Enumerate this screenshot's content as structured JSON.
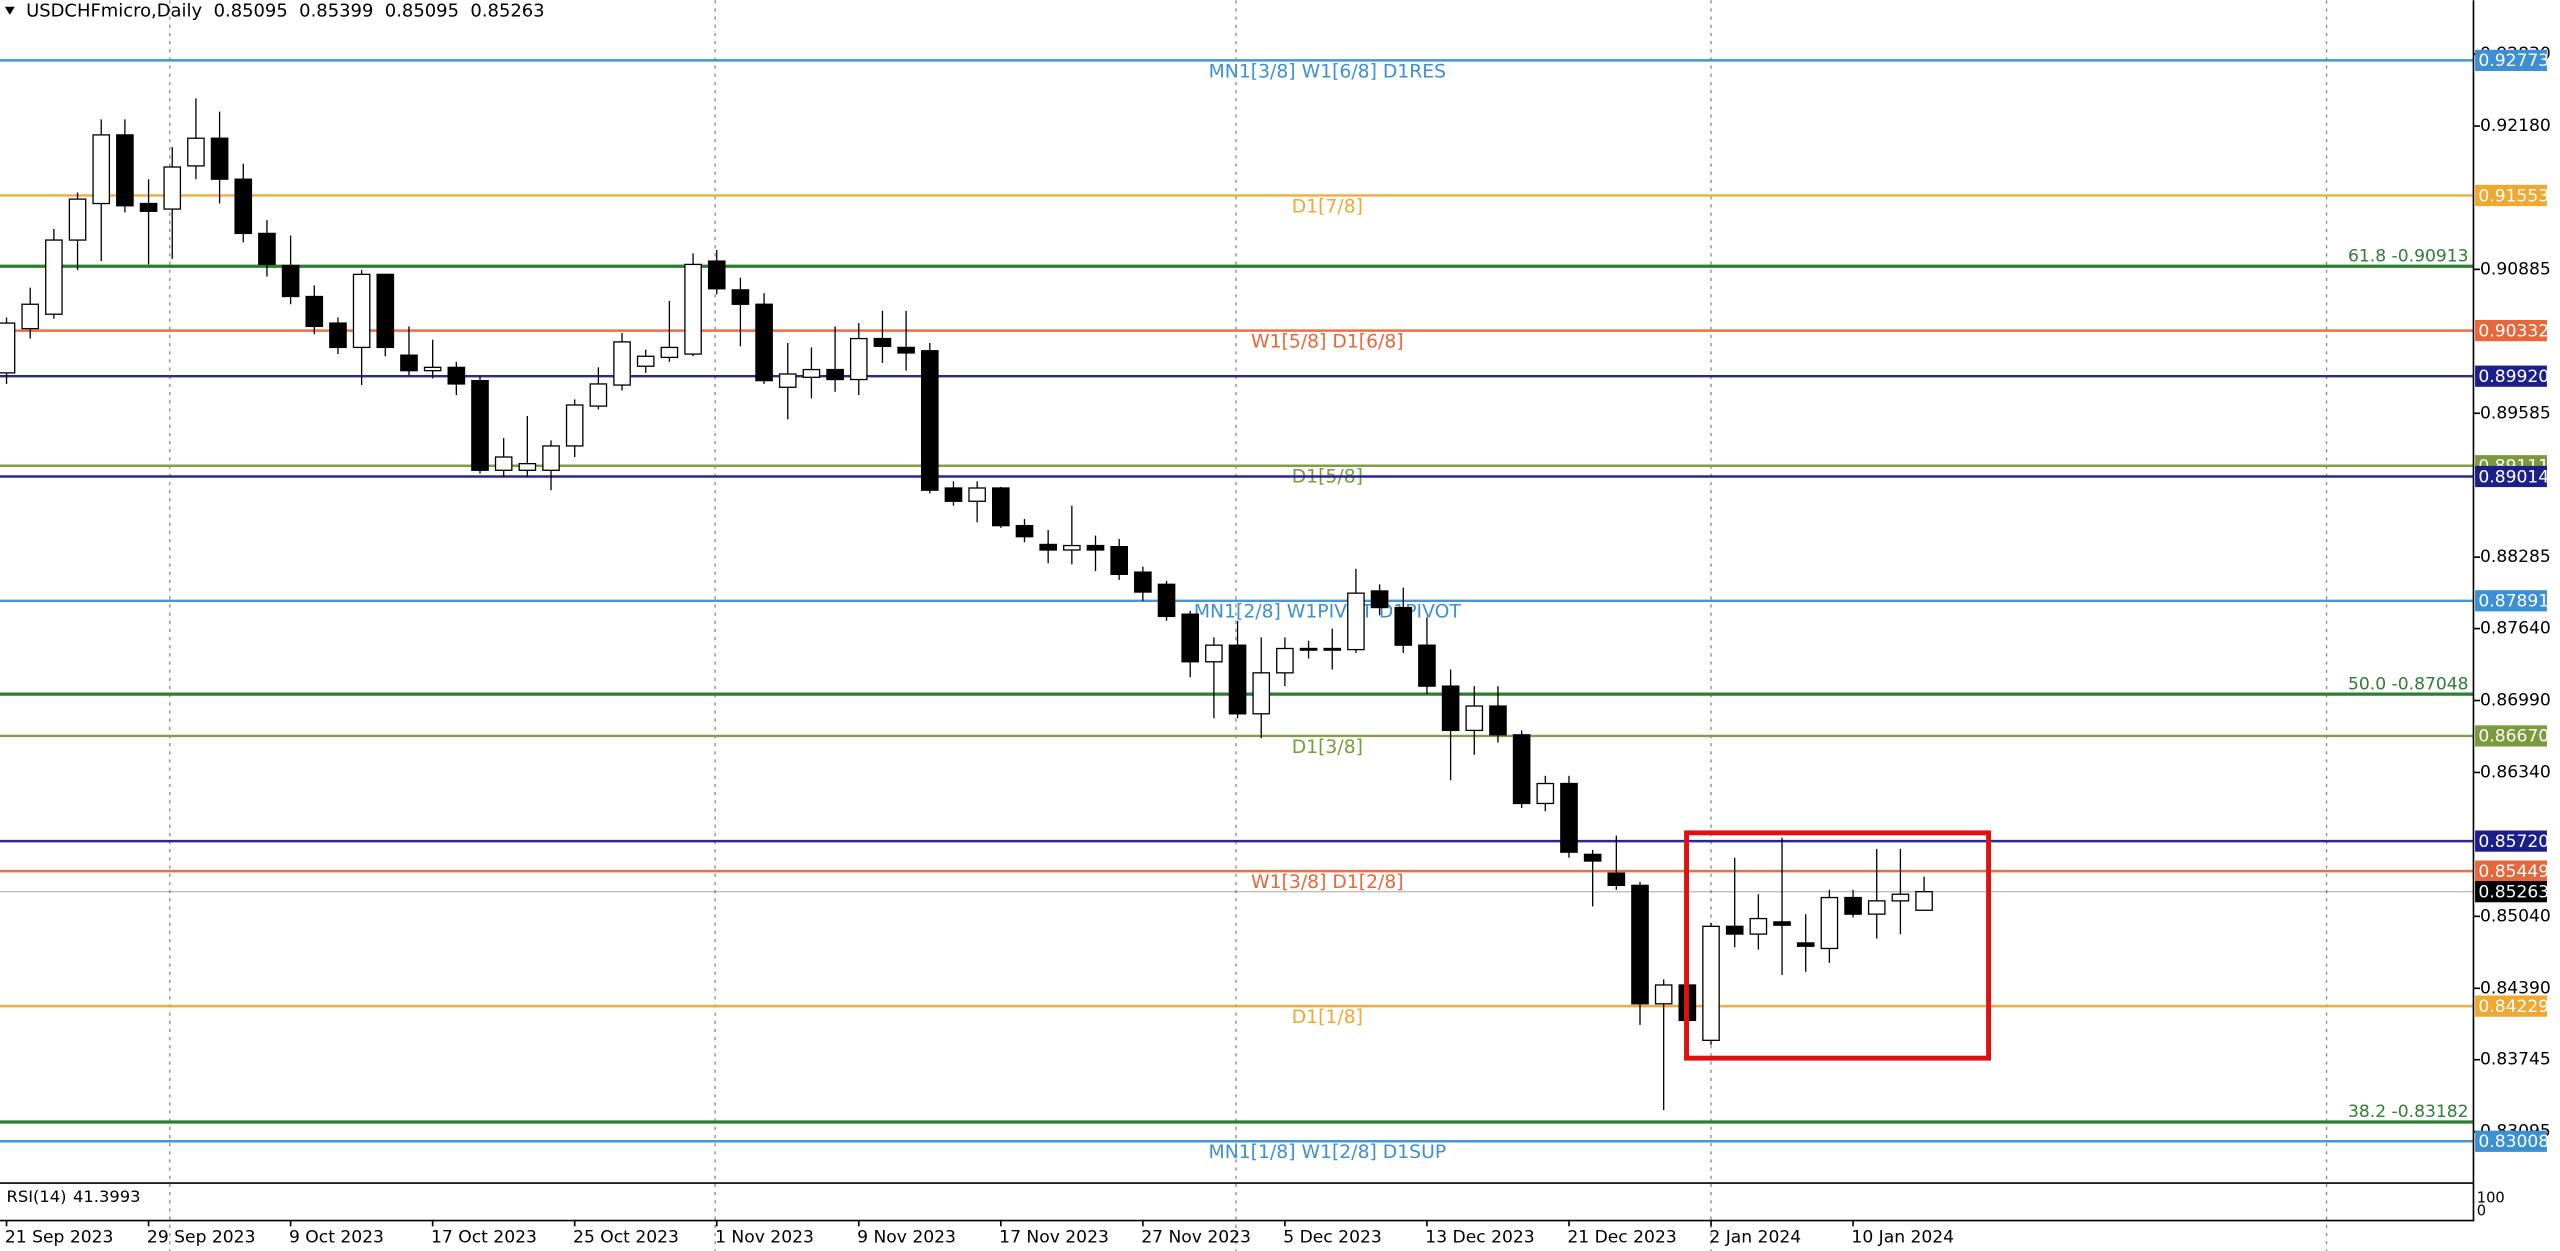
{
  "chart_data": {
    "type": "candlestick",
    "symbol": "USDCHFmicro,Daily",
    "open": [
      0.8995,
      0.9035,
      0.9048,
      0.9115,
      0.9148,
      0.921,
      0.9148,
      0.9143,
      0.9182,
      0.9207,
      0.917,
      0.9121,
      0.9092,
      0.9064,
      0.904,
      0.9018,
      0.9084,
      0.9011,
      0.8997,
      0.9,
      0.8988,
      0.8907,
      0.8907,
      0.8907,
      0.8929,
      0.8965,
      0.8984,
      0.9001,
      0.9009,
      0.9012,
      0.9096,
      0.907,
      0.9057,
      0.8982,
      0.8991,
      0.8998,
      0.8989,
      0.9026,
      0.9018,
      0.9015,
      0.8891,
      0.8879,
      0.8891,
      0.8857,
      0.884,
      0.8835,
      0.8839,
      0.8838,
      0.8815,
      0.8804,
      0.8777,
      0.8734,
      0.8749,
      0.8687,
      0.8724,
      0.8746,
      0.8746,
      0.8745,
      0.8798,
      0.8783,
      0.8749,
      0.8712,
      0.8672,
      0.8694,
      0.8668,
      0.8606,
      0.8624,
      0.856,
      0.8543,
      0.8532,
      0.8425,
      0.8442,
      0.8392,
      0.8495,
      0.8488,
      0.8499,
      0.848,
      0.8475,
      0.8521,
      0.8506,
      0.8518,
      0.85095
    ],
    "high": [
      0.9045,
      0.9072,
      0.9125,
      0.9158,
      0.9224,
      0.9224,
      0.917,
      0.9199,
      0.9243,
      0.9231,
      0.9184,
      0.9133,
      0.9119,
      0.9074,
      0.9045,
      0.9088,
      0.9084,
      0.9037,
      0.9025,
      0.9005,
      0.8992,
      0.8936,
      0.8956,
      0.8934,
      0.8971,
      0.9,
      0.9031,
      0.9016,
      0.906,
      0.9103,
      0.9106,
      0.9081,
      0.9067,
      0.9022,
      0.9018,
      0.9037,
      0.904,
      0.9051,
      0.9051,
      0.9022,
      0.8897,
      0.8897,
      0.8892,
      0.8863,
      0.8853,
      0.8875,
      0.8848,
      0.8845,
      0.882,
      0.8807,
      0.878,
      0.8756,
      0.8771,
      0.8756,
      0.8756,
      0.8753,
      0.8764,
      0.8818,
      0.8804,
      0.8801,
      0.8774,
      0.8727,
      0.8712,
      0.8712,
      0.8672,
      0.8631,
      0.8631,
      0.8564,
      0.8577,
      0.8535,
      0.8447,
      0.8464,
      0.8498,
      0.8557,
      0.8524,
      0.8575,
      0.8506,
      0.8528,
      0.8528,
      0.8565,
      0.8565,
      0.85399
    ],
    "low": [
      0.8985,
      0.9026,
      0.9044,
      0.9088,
      0.9096,
      0.914,
      0.9093,
      0.9098,
      0.917,
      0.9148,
      0.9113,
      0.9082,
      0.9057,
      0.903,
      0.9012,
      0.8984,
      0.901,
      0.8993,
      0.899,
      0.8975,
      0.8904,
      0.8901,
      0.8901,
      0.8889,
      0.8919,
      0.8962,
      0.8979,
      0.8995,
      0.9005,
      0.901,
      0.9066,
      0.9019,
      0.8985,
      0.8953,
      0.8972,
      0.8978,
      0.8975,
      0.9004,
      0.8997,
      0.8886,
      0.8875,
      0.886,
      0.8855,
      0.8842,
      0.8823,
      0.8822,
      0.8816,
      0.8808,
      0.8789,
      0.8771,
      0.872,
      0.8683,
      0.8683,
      0.8665,
      0.8712,
      0.8737,
      0.8727,
      0.8742,
      0.8776,
      0.8742,
      0.8705,
      0.8627,
      0.865,
      0.8661,
      0.8602,
      0.8599,
      0.8557,
      0.8513,
      0.8528,
      0.8406,
      0.8329,
      0.8402,
      0.8388,
      0.8476,
      0.8474,
      0.8451,
      0.8454,
      0.8462,
      0.8503,
      0.8484,
      0.8488,
      0.85095
    ],
    "close": [
      0.904,
      0.9057,
      0.9115,
      0.9152,
      0.921,
      0.9146,
      0.9141,
      0.9181,
      0.9207,
      0.917,
      0.9121,
      0.9093,
      0.9064,
      0.9037,
      0.9018,
      0.9084,
      0.9018,
      0.8997,
      0.9,
      0.8985,
      0.8907,
      0.8919,
      0.8913,
      0.8929,
      0.8966,
      0.8985,
      0.9023,
      0.901,
      0.9018,
      0.9093,
      0.9071,
      0.9057,
      0.8988,
      0.8994,
      0.8998,
      0.8989,
      0.9026,
      0.9019,
      0.9013,
      0.8889,
      0.8879,
      0.8891,
      0.8857,
      0.8847,
      0.8835,
      0.8839,
      0.8835,
      0.8813,
      0.8797,
      0.8775,
      0.8734,
      0.8749,
      0.8687,
      0.8724,
      0.8746,
      0.8745,
      0.8745,
      0.8796,
      0.8783,
      0.8749,
      0.8712,
      0.8672,
      0.8694,
      0.8668,
      0.8606,
      0.8624,
      0.8562,
      0.8554,
      0.8532,
      0.8425,
      0.8442,
      0.841,
      0.8495,
      0.8488,
      0.8502,
      0.8496,
      0.8477,
      0.8521,
      0.8506,
      0.8518,
      0.8524,
      0.85263
    ],
    "x_labels": [
      "21 Sep 2023",
      "29 Sep 2023",
      "9 Oct 2023",
      "17 Oct 2023",
      "25 Oct 2023",
      "1 Nov 2023",
      "9 Nov 2023",
      "17 Nov 2023",
      "27 Nov 2023",
      "5 Dec 2023",
      "13 Dec 2023",
      "21 Dec 2023",
      "2 Jan 2024",
      "10 Jan 2024"
    ],
    "ylim": [
      0.82638,
      0.93317
    ],
    "yticks": [
      {
        "value": 0.9283,
        "label": "0.92830"
      },
      {
        "value": 0.9218,
        "label": "0.92180"
      },
      0.90885,
      0.89585,
      0.88285,
      {
        "value": 0.8764,
        "label": "0.87640"
      },
      {
        "value": 0.8699,
        "label": "0.86990"
      },
      {
        "value": 0.8634,
        "label": "0.86340"
      },
      {
        "value": 0.8504,
        "label": "0.85040"
      },
      {
        "value": 0.8439,
        "label": "0.84390"
      },
      0.83745,
      0.83095
    ],
    "up_color": "#ffffff",
    "down_color": "#000000",
    "levels": [
      {
        "price": 0.92773,
        "color": "#3d8fd4",
        "text": "MN1[3/8] W1[6/8] D1RES"
      },
      {
        "price": 0.91553,
        "color": "#f0a830",
        "text": "D1[7/8]"
      },
      {
        "price": 0.90332,
        "color": "#e8673a",
        "text": "W1[5/8] D1[6/8]"
      },
      {
        "price": {
          "value": 0.8992,
          "label": "0.89920"
        },
        "color": "#1c1f8a"
      },
      {
        "price": 0.89111,
        "color": "#7b9a3c",
        "text": "D1[5/8]"
      },
      {
        "price": 0.89014,
        "color": "#1c1f8a"
      },
      {
        "price": 0.87891,
        "color": "#3d8fd4",
        "text": "MN1[2/8] W1PIVOT D1PIVOT"
      },
      {
        "price": {
          "value": 0.8667,
          "label": "0.86670"
        },
        "color": "#7b9a3c",
        "text": "D1[3/8]"
      },
      {
        "price": {
          "value": 0.8572,
          "label": "0.85720"
        },
        "color": "#1c1f8a"
      },
      {
        "price": 0.85449,
        "color": "#e8673a",
        "text": "W1[3/8] D1[2/8]"
      },
      {
        "price": 0.84229,
        "color": "#f0a830",
        "text": "D1[1/8]"
      },
      {
        "price": 0.83008,
        "color": "#3d8fd4",
        "text": "MN1[1/8] W1[2/8] D1SUP"
      }
    ],
    "current_price": {
      "price": 0.85263,
      "color": "#000000"
    },
    "fib_levels": [
      {
        "price": 0.90913,
        "text": "61.8 -0.90913",
        "color": "#2e7d32"
      },
      {
        "price": 0.87048,
        "text": "50.0 -0.87048",
        "color": "#2e7d32"
      },
      {
        "price": 0.83182,
        "text": "38.2 -0.83182",
        "color": "#2e7d32"
      }
    ],
    "rsi": {
      "label": "RSI(14)",
      "value": 41.3993,
      "ticks": [
        100,
        0
      ]
    }
  }
}
